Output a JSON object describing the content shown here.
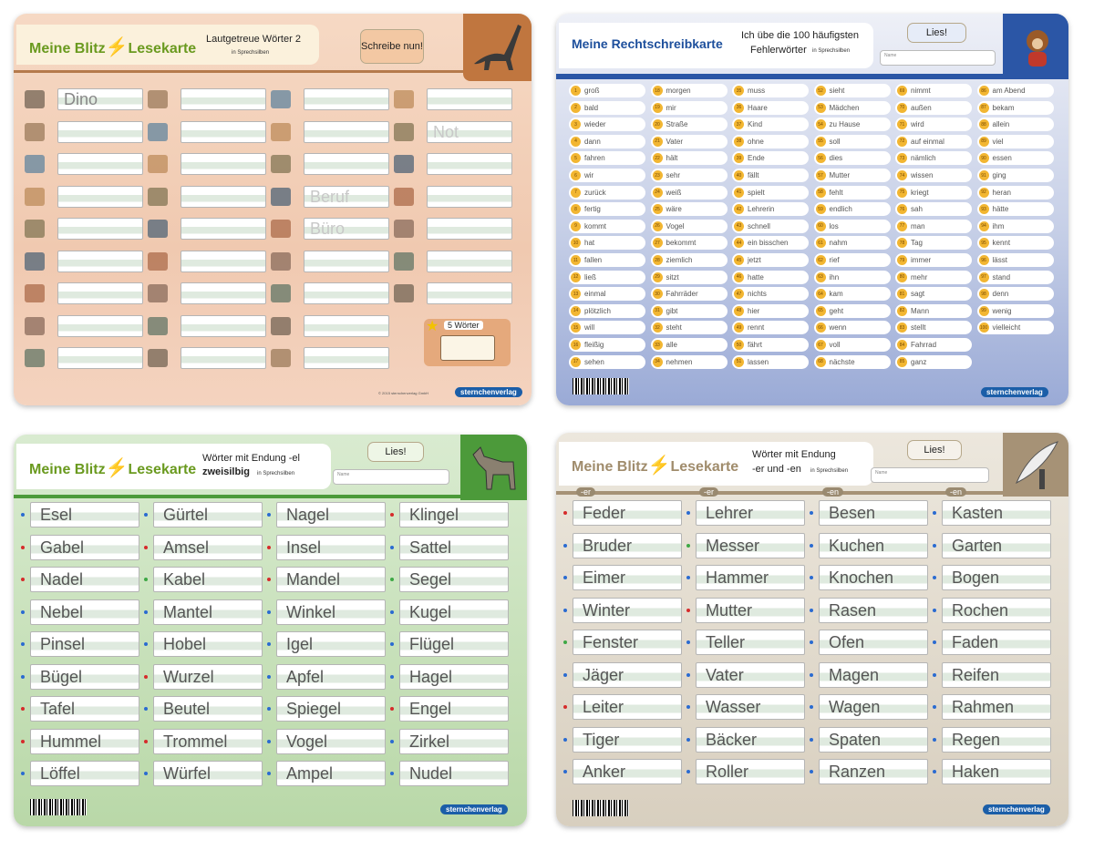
{
  "card_lautgetreue": {
    "title_left": "Meine Blitz",
    "title_right": "Lesekarte",
    "subtitle": "Lautgetreue Wörter 2",
    "note": "in Sprechsilben",
    "button": "Schreibe nun!",
    "sample_words": [
      "Dino",
      "Not",
      "Beruf",
      "Büro"
    ],
    "badge": "5 Wörter",
    "copyright": "© 2015 sternchenverlag GmbH",
    "logo": "sternchenverlag"
  },
  "card_rechtschreib": {
    "title": "Meine Rechtschreibkarte",
    "subtitle": "Ich übe die 100 häufigsten",
    "subtitle2": "Fehlerwörter",
    "note": "in Sprechsilben",
    "button": "Lies!",
    "name_label": "Name",
    "words": [
      {
        "num": 1,
        "word": "groß"
      },
      {
        "num": 2,
        "word": "bald"
      },
      {
        "num": 3,
        "word": "wieder"
      },
      {
        "num": 4,
        "word": "dann"
      },
      {
        "num": 5,
        "word": "fahren"
      },
      {
        "num": 6,
        "word": "wir"
      },
      {
        "num": 7,
        "word": "zurück"
      },
      {
        "num": 8,
        "word": "fertig"
      },
      {
        "num": 9,
        "word": "kommt"
      },
      {
        "num": 10,
        "word": "hat"
      },
      {
        "num": 11,
        "word": "fallen"
      },
      {
        "num": 12,
        "word": "ließ"
      },
      {
        "num": 13,
        "word": "einmal"
      },
      {
        "num": 14,
        "word": "plötzlich"
      },
      {
        "num": 15,
        "word": "will"
      },
      {
        "num": 16,
        "word": "fleißig"
      },
      {
        "num": 17,
        "word": "sehen"
      },
      {
        "num": 18,
        "word": "morgen"
      },
      {
        "num": 19,
        "word": "mir"
      },
      {
        "num": 20,
        "word": "Straße"
      },
      {
        "num": 21,
        "word": "Vater"
      },
      {
        "num": 22,
        "word": "hält"
      },
      {
        "num": 23,
        "word": "sehr"
      },
      {
        "num": 24,
        "word": "weiß"
      },
      {
        "num": 25,
        "word": "wäre"
      },
      {
        "num": 26,
        "word": "Vogel"
      },
      {
        "num": 27,
        "word": "bekommt"
      },
      {
        "num": 28,
        "word": "ziemlich"
      },
      {
        "num": 29,
        "word": "sitzt"
      },
      {
        "num": 30,
        "word": "Fahrräder"
      },
      {
        "num": 31,
        "word": "gibt"
      },
      {
        "num": 32,
        "word": "steht"
      },
      {
        "num": 33,
        "word": "alle"
      },
      {
        "num": 34,
        "word": "nehmen"
      },
      {
        "num": 35,
        "word": "muss"
      },
      {
        "num": 36,
        "word": "Haare"
      },
      {
        "num": 37,
        "word": "Kind"
      },
      {
        "num": 38,
        "word": "ohne"
      },
      {
        "num": 39,
        "word": "Ende"
      },
      {
        "num": 40,
        "word": "fällt"
      },
      {
        "num": 41,
        "word": "spielt"
      },
      {
        "num": 42,
        "word": "Lehrerin"
      },
      {
        "num": 43,
        "word": "schnell"
      },
      {
        "num": 44,
        "word": "ein bisschen"
      },
      {
        "num": 45,
        "word": "jetzt"
      },
      {
        "num": 46,
        "word": "hatte"
      },
      {
        "num": 47,
        "word": "nichts"
      },
      {
        "num": 48,
        "word": "hier"
      },
      {
        "num": 49,
        "word": "rennt"
      },
      {
        "num": 50,
        "word": "fährt"
      },
      {
        "num": 51,
        "word": "lassen"
      },
      {
        "num": 52,
        "word": "sieht"
      },
      {
        "num": 53,
        "word": "Mädchen"
      },
      {
        "num": 54,
        "word": "zu Hause"
      },
      {
        "num": 55,
        "word": "soll"
      },
      {
        "num": 56,
        "word": "dies"
      },
      {
        "num": 57,
        "word": "Mutter"
      },
      {
        "num": 58,
        "word": "fehlt"
      },
      {
        "num": 59,
        "word": "endlich"
      },
      {
        "num": 60,
        "word": "los"
      },
      {
        "num": 61,
        "word": "nahm"
      },
      {
        "num": 62,
        "word": "rief"
      },
      {
        "num": 63,
        "word": "ihn"
      },
      {
        "num": 64,
        "word": "kam"
      },
      {
        "num": 65,
        "word": "geht"
      },
      {
        "num": 66,
        "word": "wenn"
      },
      {
        "num": 67,
        "word": "voll"
      },
      {
        "num": 68,
        "word": "nächste"
      },
      {
        "num": 69,
        "word": "nimmt"
      },
      {
        "num": 70,
        "word": "außen"
      },
      {
        "num": 71,
        "word": "wird"
      },
      {
        "num": 72,
        "word": "auf einmal"
      },
      {
        "num": 73,
        "word": "nämlich"
      },
      {
        "num": 74,
        "word": "wissen"
      },
      {
        "num": 75,
        "word": "kriegt"
      },
      {
        "num": 76,
        "word": "sah"
      },
      {
        "num": 77,
        "word": "man"
      },
      {
        "num": 78,
        "word": "Tag"
      },
      {
        "num": 79,
        "word": "immer"
      },
      {
        "num": 80,
        "word": "mehr"
      },
      {
        "num": 81,
        "word": "sagt"
      },
      {
        "num": 82,
        "word": "Mann"
      },
      {
        "num": 83,
        "word": "stellt"
      },
      {
        "num": 84,
        "word": "Fahrrad"
      },
      {
        "num": 85,
        "word": "ganz"
      },
      {
        "num": 86,
        "word": "am Abend"
      },
      {
        "num": 87,
        "word": "bekam"
      },
      {
        "num": 88,
        "word": "allein"
      },
      {
        "num": 89,
        "word": "viel"
      },
      {
        "num": 90,
        "word": "essen"
      },
      {
        "num": 91,
        "word": "ging"
      },
      {
        "num": 92,
        "word": "heran"
      },
      {
        "num": 93,
        "word": "hätte"
      },
      {
        "num": 94,
        "word": "ihm"
      },
      {
        "num": 95,
        "word": "kennt"
      },
      {
        "num": 96,
        "word": "lässt"
      },
      {
        "num": 97,
        "word": "stand"
      },
      {
        "num": 98,
        "word": "denn"
      },
      {
        "num": 99,
        "word": "wenig"
      },
      {
        "num": 100,
        "word": "vielleicht"
      }
    ],
    "logo": "sternchenverlag"
  },
  "card_el": {
    "title_left": "Meine Blitz",
    "title_right": "Lesekarte",
    "subtitle": "Wörter mit Endung -el",
    "subtitle2": "zweisilbig",
    "note": "in Sprechsilben",
    "button": "Lies!",
    "name_label": "Name",
    "columns": [
      [
        {
          "text": "Esel",
          "dot": "#2a6bd1"
        },
        {
          "text": "Gabel",
          "dot": "#d62b2b"
        },
        {
          "text": "Nadel",
          "dot": "#d62b2b"
        },
        {
          "text": "Nebel",
          "dot": "#2a6bd1"
        },
        {
          "text": "Pinsel",
          "dot": "#2a6bd1"
        },
        {
          "text": "Bügel",
          "dot": "#2a6bd1"
        },
        {
          "text": "Tafel",
          "dot": "#d62b2b"
        },
        {
          "text": "Hummel",
          "dot": "#d62b2b"
        },
        {
          "text": "Löffel",
          "dot": "#2a6bd1"
        }
      ],
      [
        {
          "text": "Gürtel",
          "dot": "#2a6bd1"
        },
        {
          "text": "Amsel",
          "dot": "#d62b2b"
        },
        {
          "text": "Kabel",
          "dot": "#3ea845"
        },
        {
          "text": "Mantel",
          "dot": "#2a6bd1"
        },
        {
          "text": "Hobel",
          "dot": "#2a6bd1"
        },
        {
          "text": "Wurzel",
          "dot": "#d62b2b"
        },
        {
          "text": "Beutel",
          "dot": "#2a6bd1"
        },
        {
          "text": "Trommel",
          "dot": "#d62b2b"
        },
        {
          "text": "Würfel",
          "dot": "#2a6bd1"
        }
      ],
      [
        {
          "text": "Nagel",
          "dot": "#2a6bd1"
        },
        {
          "text": "Insel",
          "dot": "#d62b2b"
        },
        {
          "text": "Mandel",
          "dot": "#d62b2b"
        },
        {
          "text": "Winkel",
          "dot": "#2a6bd1"
        },
        {
          "text": "Igel",
          "dot": "#2a6bd1"
        },
        {
          "text": "Apfel",
          "dot": "#2a6bd1"
        },
        {
          "text": "Spiegel",
          "dot": "#2a6bd1"
        },
        {
          "text": "Vogel",
          "dot": "#2a6bd1"
        },
        {
          "text": "Ampel",
          "dot": "#2a6bd1"
        }
      ],
      [
        {
          "text": "Klingel",
          "dot": "#d62b2b"
        },
        {
          "text": "Sattel",
          "dot": "#2a6bd1"
        },
        {
          "text": "Segel",
          "dot": "#3ea845"
        },
        {
          "text": "Kugel",
          "dot": "#2a6bd1"
        },
        {
          "text": "Flügel",
          "dot": "#2a6bd1"
        },
        {
          "text": "Hagel",
          "dot": "#2a6bd1"
        },
        {
          "text": "Engel",
          "dot": "#d62b2b"
        },
        {
          "text": "Zirkel",
          "dot": "#2a6bd1"
        },
        {
          "text": "Nudel",
          "dot": "#2a6bd1"
        }
      ]
    ],
    "logo": "sternchenverlag"
  },
  "card_er_en": {
    "title_left": "Meine Blitz",
    "title_right": "Lesekarte",
    "subtitle": "Wörter mit Endung",
    "subtitle2": "-er und -en",
    "note": "in Sprechsilben",
    "button": "Lies!",
    "name_label": "Name",
    "headers": [
      "-er",
      "-er",
      "-en",
      "-en"
    ],
    "columns": [
      [
        {
          "text": "Feder",
          "dot": "#d62b2b"
        },
        {
          "text": "Bruder",
          "dot": "#2a6bd1"
        },
        {
          "text": "Eimer",
          "dot": "#2a6bd1"
        },
        {
          "text": "Winter",
          "dot": "#2a6bd1"
        },
        {
          "text": "Fenster",
          "dot": "#3ea845"
        },
        {
          "text": "Jäger",
          "dot": "#2a6bd1"
        },
        {
          "text": "Leiter",
          "dot": "#d62b2b"
        },
        {
          "text": "Tiger",
          "dot": "#2a6bd1"
        },
        {
          "text": "Anker",
          "dot": "#2a6bd1"
        }
      ],
      [
        {
          "text": "Lehrer",
          "dot": "#2a6bd1"
        },
        {
          "text": "Messer",
          "dot": "#3ea845"
        },
        {
          "text": "Hammer",
          "dot": "#2a6bd1"
        },
        {
          "text": "Mutter",
          "dot": "#d62b2b"
        },
        {
          "text": "Teller",
          "dot": "#2a6bd1"
        },
        {
          "text": "Vater",
          "dot": "#2a6bd1"
        },
        {
          "text": "Wasser",
          "dot": "#2a6bd1"
        },
        {
          "text": "Bäcker",
          "dot": "#2a6bd1"
        },
        {
          "text": "Roller",
          "dot": "#2a6bd1"
        }
      ],
      [
        {
          "text": "Besen",
          "dot": "#2a6bd1"
        },
        {
          "text": "Kuchen",
          "dot": "#2a6bd1"
        },
        {
          "text": "Knochen",
          "dot": "#2a6bd1"
        },
        {
          "text": "Rasen",
          "dot": "#2a6bd1"
        },
        {
          "text": "Ofen",
          "dot": "#2a6bd1"
        },
        {
          "text": "Magen",
          "dot": "#2a6bd1"
        },
        {
          "text": "Wagen",
          "dot": "#2a6bd1"
        },
        {
          "text": "Spaten",
          "dot": "#2a6bd1"
        },
        {
          "text": "Ranzen",
          "dot": "#2a6bd1"
        }
      ],
      [
        {
          "text": "Kasten",
          "dot": "#2a6bd1"
        },
        {
          "text": "Garten",
          "dot": "#2a6bd1"
        },
        {
          "text": "Bogen",
          "dot": "#2a6bd1"
        },
        {
          "text": "Rochen",
          "dot": "#2a6bd1"
        },
        {
          "text": "Faden",
          "dot": "#2a6bd1"
        },
        {
          "text": "Reifen",
          "dot": "#2a6bd1"
        },
        {
          "text": "Rahmen",
          "dot": "#2a6bd1"
        },
        {
          "text": "Regen",
          "dot": "#2a6bd1"
        },
        {
          "text": "Haken",
          "dot": "#2a6bd1"
        }
      ]
    ],
    "logo": "sternchenverlag"
  }
}
